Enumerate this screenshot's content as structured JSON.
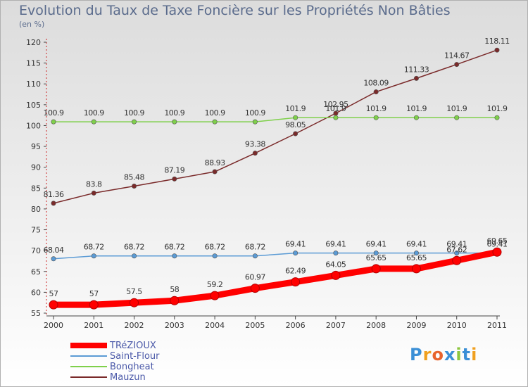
{
  "chart_data": {
    "type": "line",
    "title": "Evolution du Taux de Taxe Foncière sur les Propriétés Non Bâties",
    "ylabel": "(en %)",
    "xlabel": "",
    "ylim": [
      55,
      120
    ],
    "yticks": [
      55,
      60,
      65,
      70,
      75,
      80,
      85,
      90,
      95,
      100,
      105,
      110,
      115,
      120
    ],
    "categories": [
      "2000",
      "2001",
      "2002",
      "2003",
      "2004",
      "2005",
      "2006",
      "2007",
      "2008",
      "2009",
      "2010",
      "2011"
    ],
    "series": [
      {
        "name": "TRéZIOUX",
        "color": "#ff0000",
        "values": [
          57,
          57,
          57.5,
          58,
          59.2,
          60.97,
          62.49,
          64.05,
          65.65,
          65.65,
          67.62,
          69.65
        ],
        "labels": [
          "57",
          "57",
          "57.5",
          "58",
          "59.2",
          "60.97",
          "62.49",
          "64.05",
          "65.65",
          "65.65",
          "67.62",
          "69.65"
        ]
      },
      {
        "name": "Saint-Flour",
        "color": "#5b9bd5",
        "values": [
          68.04,
          68.72,
          68.72,
          68.72,
          68.72,
          68.72,
          69.41,
          69.41,
          69.41,
          69.41,
          69.41,
          69.41
        ],
        "labels": [
          "68.04",
          "68.72",
          "68.72",
          "68.72",
          "68.72",
          "68.72",
          "69.41",
          "69.41",
          "69.41",
          "69.41",
          "69.41",
          "69.41"
        ]
      },
      {
        "name": "Bongheat",
        "color": "#7fd04b",
        "values": [
          100.9,
          100.9,
          100.9,
          100.9,
          100.9,
          100.9,
          101.9,
          101.9,
          101.9,
          101.9,
          101.9,
          101.9
        ],
        "labels": [
          "100.9",
          "100.9",
          "100.9",
          "100.9",
          "100.9",
          "100.9",
          "101.9",
          "101.9",
          "101.9",
          "101.9",
          "101.9",
          "101.9"
        ]
      },
      {
        "name": "Mauzun",
        "color": "#7a2a2a",
        "values": [
          81.36,
          83.8,
          85.48,
          87.19,
          88.93,
          93.38,
          98.05,
          102.95,
          108.09,
          111.33,
          114.67,
          118.11
        ],
        "labels": [
          "81.36",
          "83.8",
          "85.48",
          "87.19",
          "88.93",
          "93.38",
          "98.05",
          "102.95",
          "108.09",
          "111.33",
          "114.67",
          "118.11"
        ]
      }
    ],
    "legend_position": "bottom-left",
    "grid": false
  },
  "logo": {
    "letters": [
      "P",
      "r",
      "o",
      "x",
      "i",
      "t",
      "i"
    ],
    "colors": [
      "#3b8fd6",
      "#f0a020",
      "#e8632c",
      "#3b8fd6",
      "#8cc63f",
      "#3b8fd6",
      "#f0a020"
    ]
  }
}
